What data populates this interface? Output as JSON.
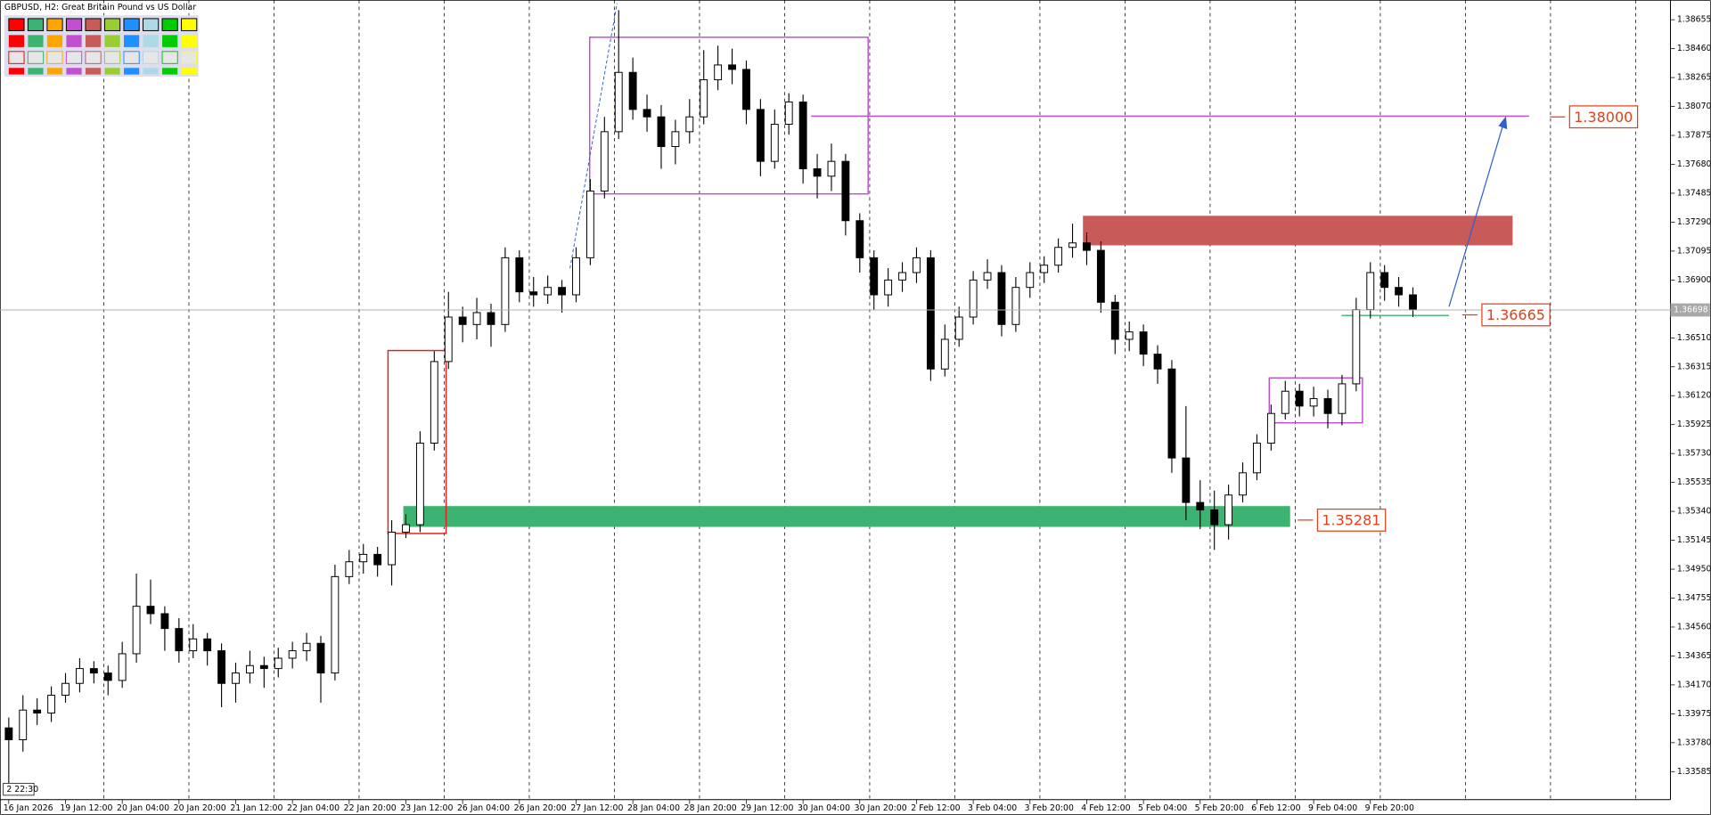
{
  "chart_data": {
    "type": "candlestick",
    "title": "GBPUSD, H2:  Great Britain Pound vs US Dollar",
    "time_badge": "2 22:30",
    "ylim": [
      1.33396,
      1.38788
    ],
    "yticks": [
      1.38655,
      {
        "value": 1.3846,
        "label": "1.38460"
      },
      1.38265,
      {
        "value": 1.3807,
        "label": "1.38070"
      },
      1.37875,
      {
        "value": 1.3768,
        "label": "1.37680"
      },
      1.37485,
      {
        "value": 1.3729,
        "label": "1.37290"
      },
      1.37095,
      {
        "value": 1.369,
        "label": "1.36900"
      },
      {
        "value": 1.3651,
        "label": "1.36510"
      },
      1.36315,
      {
        "value": 1.3612,
        "label": "1.36120"
      },
      1.35925,
      {
        "value": 1.3573,
        "label": "1.35730"
      },
      1.35535,
      {
        "value": 1.3534,
        "label": "1.35340"
      },
      1.35145,
      {
        "value": 1.3495,
        "label": "1.34950"
      },
      1.34755,
      {
        "value": 1.3456,
        "label": "1.34560"
      },
      1.34365,
      {
        "value": 1.3417,
        "label": "1.34170"
      },
      1.33975,
      {
        "value": 1.3378,
        "label": "1.33780"
      },
      1.33585
    ],
    "xticks": [
      {
        "value": 0,
        "label": "16 Jan 2026"
      },
      {
        "value": 4,
        "label": "19 Jan 12:00"
      },
      {
        "value": 8,
        "label": "20 Jan 04:00"
      },
      {
        "value": 12,
        "label": "20 Jan 20:00"
      },
      {
        "value": 16,
        "label": "21 Jan 12:00"
      },
      {
        "value": 20,
        "label": "22 Jan 04:00"
      },
      {
        "value": 24,
        "label": "22 Jan 20:00"
      },
      {
        "value": 28,
        "label": "23 Jan 12:00"
      },
      {
        "value": 32,
        "label": "26 Jan 04:00"
      },
      {
        "value": 36,
        "label": "26 Jan 20:00"
      },
      {
        "value": 40,
        "label": "27 Jan 12:00"
      },
      {
        "value": 44,
        "label": "28 Jan 04:00"
      },
      {
        "value": 48,
        "label": "28 Jan 20:00"
      },
      {
        "value": 52,
        "label": "29 Jan 12:00"
      },
      {
        "value": 56,
        "label": "30 Jan 04:00"
      },
      {
        "value": 60,
        "label": "30 Jan 20:00"
      },
      {
        "value": 64,
        "label": "2 Feb 12:00"
      },
      {
        "value": 68,
        "label": "3 Feb 04:00"
      },
      {
        "value": 72,
        "label": "3 Feb 20:00"
      },
      {
        "value": 76,
        "label": "4 Feb 12:00"
      },
      {
        "value": 80,
        "label": "5 Feb 04:00"
      },
      {
        "value": 84,
        "label": "5 Feb 20:00"
      },
      {
        "value": 88,
        "label": "6 Feb 12:00"
      },
      {
        "value": 92,
        "label": "9 Feb 04:00"
      },
      {
        "value": 96,
        "label": "9 Feb 20:00"
      }
    ],
    "current_price": 1.36698,
    "levels": [
      {
        "value": 1.38,
        "label": "1.38000"
      },
      1.36665,
      1.35281
    ],
    "candles": [
      [
        1.3388,
        1.3395,
        1.335,
        1.338
      ],
      [
        1.338,
        1.341,
        1.3372,
        1.34
      ],
      [
        1.34,
        1.3408,
        1.339,
        1.3398
      ],
      [
        1.3398,
        1.3416,
        1.3392,
        1.341
      ],
      [
        1.341,
        1.3425,
        1.3405,
        1.3418
      ],
      [
        1.3418,
        1.3435,
        1.3412,
        1.3428
      ],
      [
        1.3428,
        1.3433,
        1.3418,
        1.3425
      ],
      [
        1.3425,
        1.343,
        1.341,
        1.342
      ],
      [
        1.342,
        1.3446,
        1.3415,
        1.3438
      ],
      [
        1.3438,
        1.3492,
        1.3432,
        1.347
      ],
      [
        1.347,
        1.3488,
        1.3458,
        1.3465
      ],
      [
        1.3465,
        1.347,
        1.344,
        1.3455
      ],
      [
        1.3455,
        1.3462,
        1.3432,
        1.344
      ],
      [
        1.344,
        1.3458,
        1.3435,
        1.3448
      ],
      [
        1.3448,
        1.3452,
        1.343,
        1.344
      ],
      [
        1.344,
        1.3445,
        1.3402,
        1.3418
      ],
      [
        1.3418,
        1.3432,
        1.3405,
        1.3425
      ],
      [
        1.3425,
        1.344,
        1.3418,
        1.343
      ],
      [
        1.343,
        1.3436,
        1.3415,
        1.3428
      ],
      [
        1.3428,
        1.3442,
        1.3422,
        1.3435
      ],
      [
        1.3435,
        1.3446,
        1.3428,
        1.344
      ],
      [
        1.344,
        1.3452,
        1.3433,
        1.3445
      ],
      [
        1.3445,
        1.345,
        1.3405,
        1.3425
      ],
      [
        1.3425,
        1.3498,
        1.342,
        1.349
      ],
      [
        1.349,
        1.3508,
        1.3485,
        1.35
      ],
      [
        1.35,
        1.3512,
        1.3492,
        1.3505
      ],
      [
        1.3505,
        1.351,
        1.349,
        1.3498
      ],
      [
        1.3498,
        1.3528,
        1.3484,
        1.352
      ],
      [
        1.352,
        1.3532,
        1.3516,
        1.3525
      ],
      [
        1.3525,
        1.3588,
        1.352,
        1.358
      ],
      [
        1.358,
        1.3642,
        1.3575,
        1.3635
      ],
      [
        1.3635,
        1.3682,
        1.363,
        1.3665
      ],
      [
        1.3665,
        1.3672,
        1.3648,
        1.366
      ],
      [
        1.366,
        1.3678,
        1.365,
        1.3668
      ],
      [
        1.3668,
        1.3674,
        1.3645,
        1.366
      ],
      [
        1.366,
        1.3712,
        1.3655,
        1.3705
      ],
      [
        1.3705,
        1.371,
        1.3675,
        1.3682
      ],
      [
        1.3682,
        1.3692,
        1.3672,
        1.368
      ],
      [
        1.368,
        1.3693,
        1.3674,
        1.3685
      ],
      [
        1.3685,
        1.369,
        1.3668,
        1.368
      ],
      [
        1.368,
        1.3712,
        1.3675,
        1.3705
      ],
      [
        1.3705,
        1.3758,
        1.37,
        1.375
      ],
      [
        1.375,
        1.38,
        1.3745,
        1.379
      ],
      [
        1.379,
        1.3872,
        1.3785,
        1.383
      ],
      [
        1.383,
        1.384,
        1.3798,
        1.3805
      ],
      [
        1.3805,
        1.3815,
        1.379,
        1.38
      ],
      [
        1.38,
        1.3808,
        1.3765,
        1.378
      ],
      [
        1.378,
        1.3798,
        1.3768,
        1.379
      ],
      [
        1.379,
        1.3812,
        1.3782,
        1.38
      ],
      [
        1.38,
        1.3845,
        1.3795,
        1.3825
      ],
      [
        1.3825,
        1.3848,
        1.3818,
        1.3835
      ],
      [
        1.3835,
        1.3846,
        1.3822,
        1.3832
      ],
      [
        1.3832,
        1.3838,
        1.3795,
        1.3805
      ],
      [
        1.3805,
        1.3812,
        1.376,
        1.377
      ],
      [
        1.377,
        1.3805,
        1.3765,
        1.3795
      ],
      [
        1.3795,
        1.3816,
        1.3788,
        1.381
      ],
      [
        1.381,
        1.3815,
        1.3755,
        1.3765
      ],
      [
        1.3765,
        1.3775,
        1.3745,
        1.376
      ],
      [
        1.376,
        1.3782,
        1.375,
        1.377
      ],
      [
        1.377,
        1.3775,
        1.372,
        1.373
      ],
      [
        1.373,
        1.3735,
        1.3695,
        1.3705
      ],
      [
        1.3705,
        1.371,
        1.367,
        1.368
      ],
      [
        1.368,
        1.3698,
        1.3672,
        1.369
      ],
      [
        1.369,
        1.3702,
        1.3682,
        1.3695
      ],
      [
        1.3695,
        1.3712,
        1.3688,
        1.3705
      ],
      [
        1.3705,
        1.371,
        1.3622,
        1.363
      ],
      [
        1.363,
        1.366,
        1.3625,
        1.365
      ],
      [
        1.365,
        1.3672,
        1.3645,
        1.3665
      ],
      [
        1.3665,
        1.3696,
        1.366,
        1.369
      ],
      [
        1.369,
        1.3704,
        1.3684,
        1.3695
      ],
      [
        1.3695,
        1.37,
        1.3652,
        1.366
      ],
      [
        1.366,
        1.3692,
        1.3655,
        1.3685
      ],
      [
        1.3685,
        1.3702,
        1.3678,
        1.3695
      ],
      [
        1.3695,
        1.3706,
        1.3688,
        1.37
      ],
      [
        1.37,
        1.3718,
        1.3695,
        1.3712
      ],
      [
        1.3712,
        1.3728,
        1.3705,
        1.3715
      ],
      [
        1.3715,
        1.3722,
        1.37,
        1.371
      ],
      [
        1.371,
        1.3716,
        1.3668,
        1.3675
      ],
      [
        1.3675,
        1.368,
        1.364,
        1.365
      ],
      [
        1.365,
        1.3662,
        1.3642,
        1.3655
      ],
      [
        1.3655,
        1.366,
        1.3632,
        1.364
      ],
      [
        1.364,
        1.3646,
        1.362,
        1.363
      ],
      [
        1.363,
        1.3636,
        1.356,
        1.357
      ],
      [
        1.357,
        1.3605,
        1.3528,
        1.354
      ],
      [
        1.354,
        1.3555,
        1.3522,
        1.3535
      ],
      [
        1.3535,
        1.3548,
        1.3508,
        1.3525
      ],
      [
        1.3525,
        1.3552,
        1.3515,
        1.3545
      ],
      [
        1.3545,
        1.3567,
        1.354,
        1.356
      ],
      [
        1.356,
        1.3586,
        1.3555,
        1.358
      ],
      [
        1.358,
        1.3606,
        1.3575,
        1.36
      ],
      [
        1.36,
        1.3622,
        1.3596,
        1.3615
      ],
      [
        1.3615,
        1.362,
        1.3598,
        1.3605
      ],
      [
        1.3605,
        1.3618,
        1.3598,
        1.361
      ],
      [
        1.361,
        1.3616,
        1.359,
        1.36
      ],
      [
        1.36,
        1.3626,
        1.3592,
        1.362
      ],
      [
        1.362,
        1.3678,
        1.3615,
        1.367
      ],
      [
        1.367,
        1.3702,
        1.3664,
        1.3695
      ],
      [
        1.3695,
        1.37,
        1.3676,
        1.3685
      ],
      [
        1.3685,
        1.3692,
        1.3672,
        1.368
      ],
      [
        1.368,
        1.3685,
        1.3665,
        1.367
      ]
    ]
  }
}
